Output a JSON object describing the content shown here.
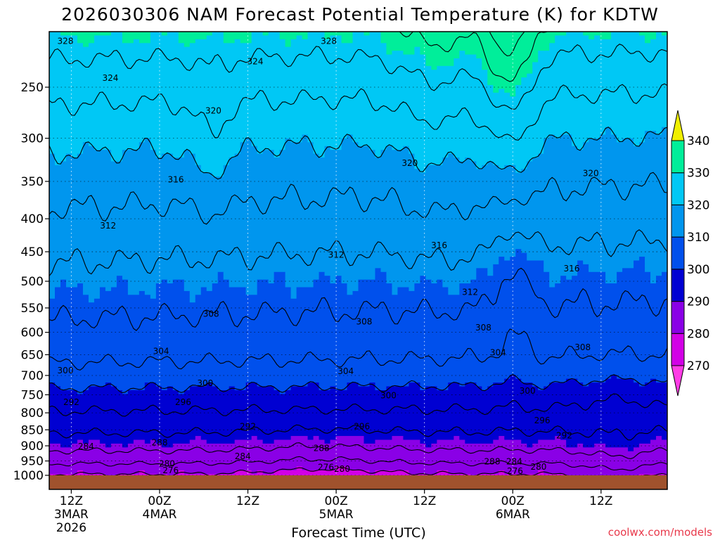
{
  "chart_data": {
    "type": "heatmap",
    "title": "2026030306 NAM Forecast Potential Temperature (K) for KDTW",
    "xlabel": "Forecast Time (UTC)",
    "ylabel": "",
    "y_axis": {
      "unit": "hPa",
      "inverted_log_pressure": true,
      "range": [
        1025,
        200
      ],
      "ticks": [
        250,
        300,
        350,
        400,
        450,
        500,
        550,
        600,
        650,
        700,
        750,
        800,
        850,
        900,
        950,
        1000
      ]
    },
    "x_axis": {
      "range_hours": [
        3,
        87
      ],
      "ticks": [
        {
          "hour": 6,
          "line1": "12Z",
          "line2": "3MAR",
          "line3": "2026"
        },
        {
          "hour": 18,
          "line1": "00Z",
          "line2": "4MAR",
          "line3": ""
        },
        {
          "hour": 30,
          "line1": "12Z",
          "line2": "",
          "line3": ""
        },
        {
          "hour": 42,
          "line1": "00Z",
          "line2": "5MAR",
          "line3": ""
        },
        {
          "hour": 54,
          "line1": "12Z",
          "line2": "",
          "line3": ""
        },
        {
          "hour": 66,
          "line1": "00Z",
          "line2": "6MAR",
          "line3": ""
        },
        {
          "hour": 78,
          "line1": "12Z",
          "line2": "",
          "line3": ""
        }
      ]
    },
    "grid": true,
    "colorbar": {
      "placement": "right",
      "levels": [
        270,
        280,
        290,
        300,
        310,
        320,
        330,
        340
      ],
      "colors": [
        "#ff3ce6",
        "#d200e6",
        "#8a00e6",
        "#0000d2",
        "#0050ec",
        "#0096ee",
        "#00c8f5",
        "#00ee9a",
        "#3cdc00",
        "#f0f000"
      ]
    },
    "contour_interval_K": 4,
    "ground_color": "#a0522d",
    "contour_labels": [
      {
        "value": "328",
        "hour": 5.2,
        "p": 212
      },
      {
        "value": "328",
        "hour": 41.0,
        "p": 212
      },
      {
        "value": "324",
        "hour": 11.3,
        "p": 242
      },
      {
        "value": "324",
        "hour": 31.0,
        "p": 228
      },
      {
        "value": "320",
        "hour": 25.3,
        "p": 272
      },
      {
        "value": "320",
        "hour": 52.0,
        "p": 328
      },
      {
        "value": "320",
        "hour": 76.6,
        "p": 340
      },
      {
        "value": "316",
        "hour": 20.2,
        "p": 348
      },
      {
        "value": "316",
        "hour": 56.0,
        "p": 440
      },
      {
        "value": "316",
        "hour": 74.0,
        "p": 478
      },
      {
        "value": "312",
        "hour": 11.0,
        "p": 410
      },
      {
        "value": "312",
        "hour": 42.0,
        "p": 455
      },
      {
        "value": "312",
        "hour": 60.2,
        "p": 520
      },
      {
        "value": "308",
        "hour": 25.0,
        "p": 562
      },
      {
        "value": "308",
        "hour": 45.8,
        "p": 578
      },
      {
        "value": "308",
        "hour": 62.0,
        "p": 590
      },
      {
        "value": "308",
        "hour": 75.5,
        "p": 633
      },
      {
        "value": "304",
        "hour": 18.2,
        "p": 642
      },
      {
        "value": "304",
        "hour": 43.3,
        "p": 690
      },
      {
        "value": "304",
        "hour": 64.0,
        "p": 645
      },
      {
        "value": "300",
        "hour": 5.2,
        "p": 688
      },
      {
        "value": "300",
        "hour": 24.2,
        "p": 720
      },
      {
        "value": "300",
        "hour": 49.1,
        "p": 752
      },
      {
        "value": "300",
        "hour": 68.0,
        "p": 740
      },
      {
        "value": "296",
        "hour": 21.2,
        "p": 770
      },
      {
        "value": "296",
        "hour": 45.5,
        "p": 840
      },
      {
        "value": "296",
        "hour": 70.0,
        "p": 822
      },
      {
        "value": "292",
        "hour": 6.0,
        "p": 770
      },
      {
        "value": "292",
        "hour": 30.0,
        "p": 840
      },
      {
        "value": "292",
        "hour": 73.0,
        "p": 868
      },
      {
        "value": "288",
        "hour": 18.0,
        "p": 890
      },
      {
        "value": "288",
        "hour": 40.0,
        "p": 908
      },
      {
        "value": "288",
        "hour": 63.2,
        "p": 952
      },
      {
        "value": "284",
        "hour": 8.0,
        "p": 902
      },
      {
        "value": "284",
        "hour": 29.3,
        "p": 935
      },
      {
        "value": "284",
        "hour": 66.2,
        "p": 952
      },
      {
        "value": "280",
        "hour": 19.0,
        "p": 960
      },
      {
        "value": "280",
        "hour": 42.8,
        "p": 978
      },
      {
        "value": "280",
        "hour": 69.5,
        "p": 970
      },
      {
        "value": "276",
        "hour": 19.5,
        "p": 982
      },
      {
        "value": "276",
        "hour": 40.6,
        "p": 972
      },
      {
        "value": "276",
        "hour": 66.3,
        "p": 985
      }
    ]
  },
  "credit": "coolwx.com/models"
}
